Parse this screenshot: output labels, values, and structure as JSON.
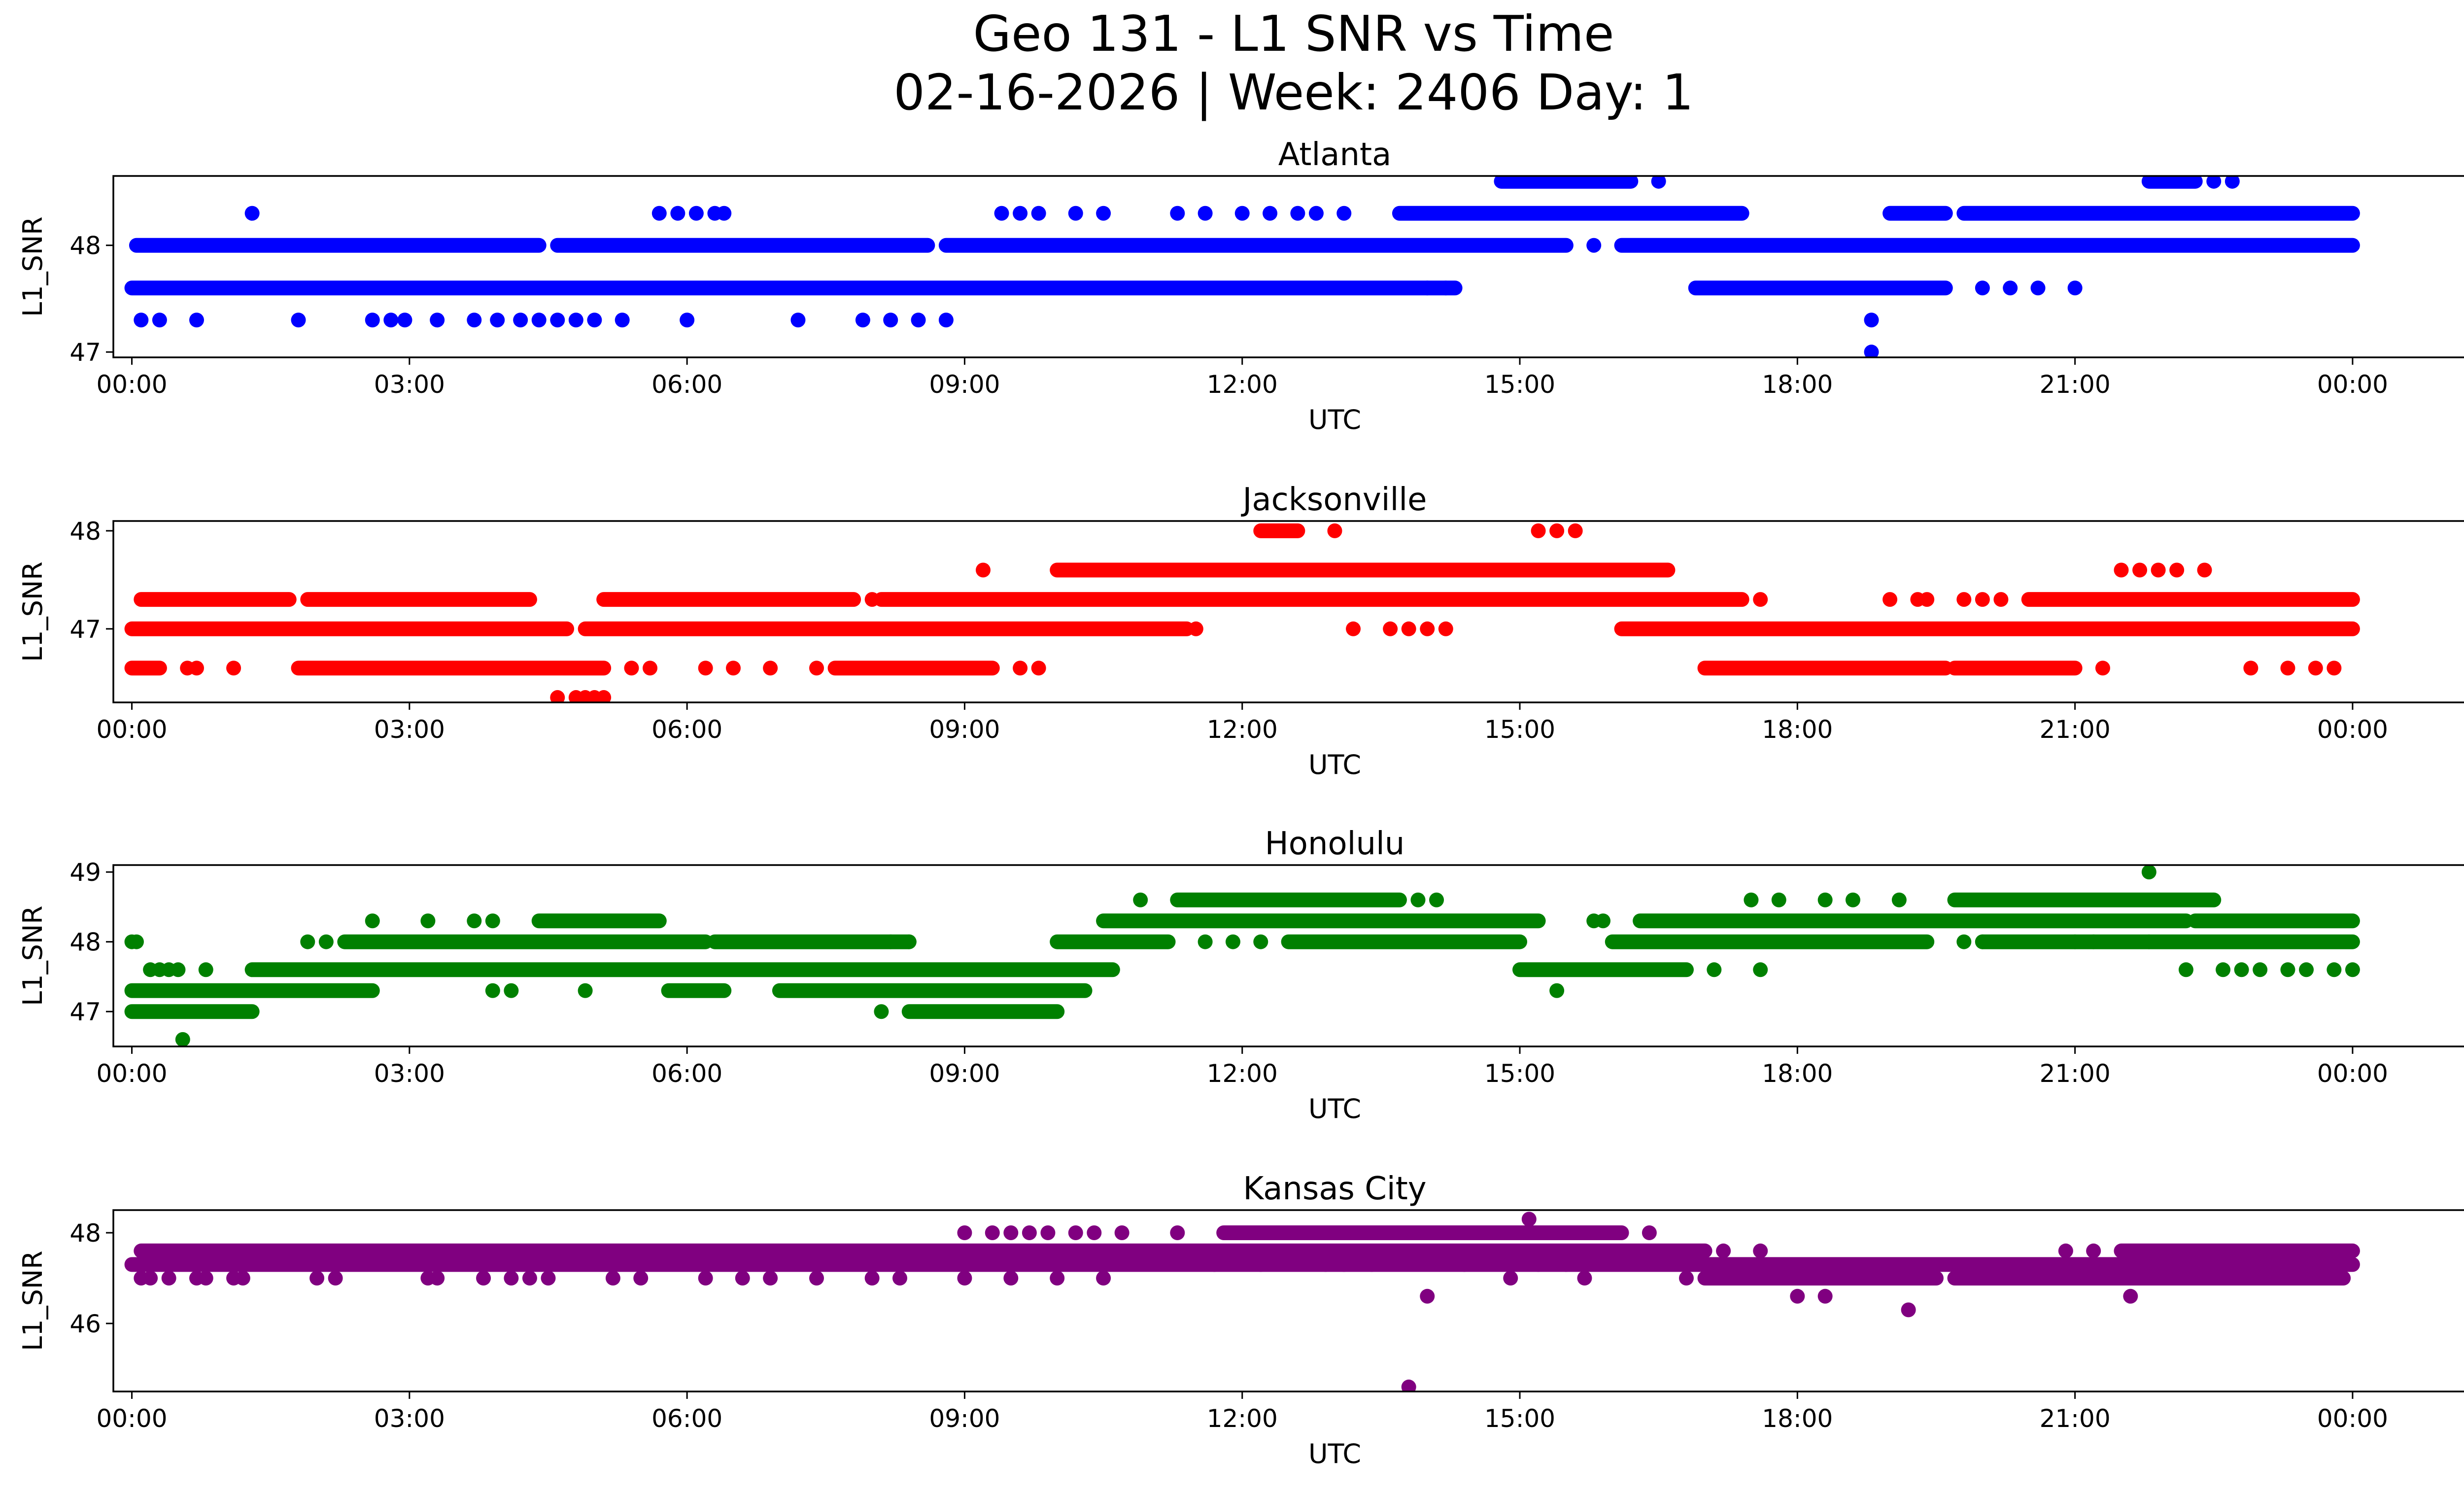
{
  "figure": {
    "title_line1": "Geo 131 - L1 SNR vs Time",
    "title_line2": "02-16-2026 | Week: 2406 Day: 1"
  },
  "chart_data": [
    {
      "type": "scatter",
      "title": "Atlanta",
      "color": "#0000ff",
      "xlabel": "UTC",
      "ylabel": "L1_SNR",
      "xlim": [
        -0.2,
        26.2
      ],
      "ylim": [
        46.95,
        48.65
      ],
      "x_ticks": [
        0,
        3,
        6,
        9,
        12,
        15,
        18,
        21,
        24
      ],
      "x_tick_labels": [
        "00:00",
        "03:00",
        "06:00",
        "09:00",
        "12:00",
        "15:00",
        "18:00",
        "21:00",
        "00:00"
      ],
      "y_ticks": [
        47,
        48
      ],
      "y_tick_labels": [
        "47",
        "48"
      ],
      "bands": [
        {
          "y": 47.6,
          "ranges": [
            [
              0.0,
              14.3
            ],
            [
              16.9,
              19.6
            ]
          ]
        },
        {
          "y": 48.0,
          "ranges": [
            [
              0.05,
              4.4
            ],
            [
              4.6,
              8.6
            ],
            [
              8.8,
              15.5
            ],
            [
              16.1,
              24.0
            ]
          ]
        },
        {
          "y": 48.3,
          "ranges": [
            [
              13.7,
              17.4
            ],
            [
              19.0,
              19.6
            ],
            [
              19.8,
              24.0
            ]
          ]
        },
        {
          "y": 48.6,
          "ranges": [
            [
              14.8,
              16.2
            ],
            [
              21.8,
              22.3
            ]
          ]
        }
      ],
      "points": [
        [
          0.1,
          47.3
        ],
        [
          0.3,
          47.3
        ],
        [
          0.7,
          47.3
        ],
        [
          1.8,
          47.3
        ],
        [
          2.6,
          47.3
        ],
        [
          2.8,
          47.3
        ],
        [
          2.95,
          47.3
        ],
        [
          3.3,
          47.3
        ],
        [
          3.7,
          47.3
        ],
        [
          3.95,
          47.3
        ],
        [
          4.2,
          47.3
        ],
        [
          4.4,
          47.3
        ],
        [
          4.6,
          47.3
        ],
        [
          4.8,
          47.3
        ],
        [
          5.0,
          47.3
        ],
        [
          5.3,
          47.3
        ],
        [
          6.0,
          47.3
        ],
        [
          7.2,
          47.3
        ],
        [
          7.9,
          47.3
        ],
        [
          8.2,
          47.3
        ],
        [
          8.5,
          47.3
        ],
        [
          8.8,
          47.3
        ],
        [
          18.8,
          47.3
        ],
        [
          18.8,
          47.0
        ],
        [
          14.0,
          47.6
        ],
        [
          14.2,
          47.6
        ],
        [
          20.0,
          47.6
        ],
        [
          20.3,
          47.6
        ],
        [
          20.6,
          47.6
        ],
        [
          21.0,
          47.6
        ],
        [
          15.8,
          48.0
        ],
        [
          1.3,
          48.3
        ],
        [
          5.7,
          48.3
        ],
        [
          5.9,
          48.3
        ],
        [
          6.1,
          48.3
        ],
        [
          6.3,
          48.3
        ],
        [
          6.4,
          48.3
        ],
        [
          9.4,
          48.3
        ],
        [
          9.6,
          48.3
        ],
        [
          9.8,
          48.3
        ],
        [
          10.2,
          48.3
        ],
        [
          10.5,
          48.3
        ],
        [
          11.3,
          48.3
        ],
        [
          11.6,
          48.3
        ],
        [
          12.0,
          48.3
        ],
        [
          12.3,
          48.3
        ],
        [
          12.6,
          48.3
        ],
        [
          12.8,
          48.3
        ],
        [
          13.1,
          48.3
        ],
        [
          16.5,
          48.6
        ],
        [
          22.5,
          48.6
        ],
        [
          22.7,
          48.6
        ]
      ]
    },
    {
      "type": "scatter",
      "title": "Jacksonville",
      "color": "#ff0000",
      "xlabel": "UTC",
      "ylabel": "L1_SNR",
      "xlim": [
        -0.2,
        26.2
      ],
      "ylim": [
        46.25,
        48.1
      ],
      "x_ticks": [
        0,
        3,
        6,
        9,
        12,
        15,
        18,
        21,
        24
      ],
      "x_tick_labels": [
        "00:00",
        "03:00",
        "06:00",
        "09:00",
        "12:00",
        "15:00",
        "18:00",
        "21:00",
        "00:00"
      ],
      "y_ticks": [
        47,
        48
      ],
      "y_tick_labels": [
        "47",
        "48"
      ],
      "bands": [
        {
          "y": 46.6,
          "ranges": [
            [
              0.0,
              0.3
            ],
            [
              1.8,
              5.1
            ],
            [
              7.6,
              9.3
            ],
            [
              17.0,
              19.6
            ],
            [
              19.7,
              21.0
            ]
          ]
        },
        {
          "y": 47.0,
          "ranges": [
            [
              0.0,
              4.7
            ],
            [
              4.9,
              11.4
            ],
            [
              16.1,
              24.0
            ]
          ]
        },
        {
          "y": 47.3,
          "ranges": [
            [
              0.1,
              1.7
            ],
            [
              1.9,
              4.3
            ],
            [
              5.1,
              7.8
            ],
            [
              8.1,
              17.4
            ],
            [
              20.5,
              24.0
            ]
          ]
        },
        {
          "y": 47.6,
          "ranges": [
            [
              10.0,
              16.6
            ]
          ]
        },
        {
          "y": 48.0,
          "ranges": [
            [
              12.2,
              12.6
            ]
          ]
        }
      ],
      "points": [
        [
          0.6,
          46.6
        ],
        [
          0.7,
          46.6
        ],
        [
          1.1,
          46.6
        ],
        [
          5.4,
          46.6
        ],
        [
          5.6,
          46.6
        ],
        [
          6.2,
          46.6
        ],
        [
          6.5,
          46.6
        ],
        [
          6.9,
          46.6
        ],
        [
          7.4,
          46.6
        ],
        [
          9.6,
          46.6
        ],
        [
          9.8,
          46.6
        ],
        [
          21.3,
          46.6
        ],
        [
          22.9,
          46.6
        ],
        [
          23.3,
          46.6
        ],
        [
          23.6,
          46.6
        ],
        [
          23.8,
          46.6
        ],
        [
          4.6,
          46.3
        ],
        [
          4.8,
          46.3
        ],
        [
          4.9,
          46.3
        ],
        [
          5.0,
          46.3
        ],
        [
          5.1,
          46.3
        ],
        [
          11.5,
          47.0
        ],
        [
          13.2,
          47.0
        ],
        [
          13.6,
          47.0
        ],
        [
          13.8,
          47.0
        ],
        [
          14.0,
          47.0
        ],
        [
          14.2,
          47.0
        ],
        [
          8.0,
          47.3
        ],
        [
          17.6,
          47.3
        ],
        [
          19.0,
          47.3
        ],
        [
          19.3,
          47.3
        ],
        [
          19.4,
          47.3
        ],
        [
          19.8,
          47.3
        ],
        [
          20.0,
          47.3
        ],
        [
          20.2,
          47.3
        ],
        [
          9.2,
          47.6
        ],
        [
          21.5,
          47.6
        ],
        [
          21.7,
          47.6
        ],
        [
          21.9,
          47.6
        ],
        [
          22.1,
          47.6
        ],
        [
          22.4,
          47.6
        ],
        [
          13.0,
          48.0
        ],
        [
          15.2,
          48.0
        ],
        [
          15.4,
          48.0
        ],
        [
          15.6,
          48.0
        ]
      ]
    },
    {
      "type": "scatter",
      "title": "Honolulu",
      "color": "#008000",
      "xlabel": "UTC",
      "ylabel": "L1_SNR",
      "xlim": [
        -0.2,
        26.2
      ],
      "ylim": [
        46.5,
        49.1
      ],
      "x_ticks": [
        0,
        3,
        6,
        9,
        12,
        15,
        18,
        21,
        24
      ],
      "x_tick_labels": [
        "00:00",
        "03:00",
        "06:00",
        "09:00",
        "12:00",
        "15:00",
        "18:00",
        "21:00",
        "00:00"
      ],
      "y_ticks": [
        47,
        48,
        49
      ],
      "y_tick_labels": [
        "47",
        "48",
        "49"
      ],
      "bands": [
        {
          "y": 47.0,
          "ranges": [
            [
              0.0,
              1.3
            ],
            [
              8.4,
              10.0
            ]
          ]
        },
        {
          "y": 47.3,
          "ranges": [
            [
              0.0,
              2.6
            ],
            [
              5.8,
              6.4
            ],
            [
              7.0,
              10.3
            ]
          ]
        },
        {
          "y": 47.6,
          "ranges": [
            [
              1.3,
              10.6
            ],
            [
              15.0,
              16.8
            ]
          ]
        },
        {
          "y": 48.0,
          "ranges": [
            [
              2.3,
              6.2
            ],
            [
              6.3,
              8.4
            ],
            [
              10.0,
              11.2
            ],
            [
              12.5,
              15.0
            ],
            [
              16.0,
              19.4
            ],
            [
              20.0,
              24.0
            ]
          ]
        },
        {
          "y": 48.3,
          "ranges": [
            [
              4.4,
              5.7
            ],
            [
              10.5,
              15.2
            ],
            [
              16.3,
              22.2
            ],
            [
              22.3,
              24.0
            ]
          ]
        },
        {
          "y": 48.6,
          "ranges": [
            [
              11.3,
              13.7
            ],
            [
              19.7,
              22.5
            ]
          ]
        }
      ],
      "points": [
        [
          0.0,
          48.0
        ],
        [
          0.05,
          48.0
        ],
        [
          0.2,
          47.6
        ],
        [
          0.3,
          47.6
        ],
        [
          0.4,
          47.6
        ],
        [
          0.5,
          47.6
        ],
        [
          0.55,
          46.6
        ],
        [
          0.8,
          47.6
        ],
        [
          1.9,
          48.0
        ],
        [
          2.1,
          48.0
        ],
        [
          2.6,
          48.3
        ],
        [
          3.2,
          48.3
        ],
        [
          3.7,
          48.3
        ],
        [
          3.9,
          48.3
        ],
        [
          3.9,
          47.3
        ],
        [
          4.1,
          47.3
        ],
        [
          4.9,
          47.3
        ],
        [
          8.1,
          47.0
        ],
        [
          8.2,
          48.0
        ],
        [
          8.4,
          48.0
        ],
        [
          10.9,
          48.6
        ],
        [
          13.9,
          48.6
        ],
        [
          14.1,
          48.6
        ],
        [
          11.6,
          48.0
        ],
        [
          11.9,
          48.0
        ],
        [
          12.2,
          48.0
        ],
        [
          15.4,
          47.3
        ],
        [
          17.1,
          47.6
        ],
        [
          17.6,
          47.6
        ],
        [
          15.8,
          48.3
        ],
        [
          15.9,
          48.3
        ],
        [
          17.5,
          48.6
        ],
        [
          17.8,
          48.6
        ],
        [
          18.3,
          48.6
        ],
        [
          18.6,
          48.6
        ],
        [
          19.1,
          48.6
        ],
        [
          19.8,
          48.0
        ],
        [
          20.0,
          48.0
        ],
        [
          21.0,
          48.0
        ],
        [
          21.2,
          48.0
        ],
        [
          21.8,
          48.0
        ],
        [
          21.8,
          49.0
        ],
        [
          22.2,
          47.6
        ],
        [
          22.6,
          47.6
        ],
        [
          22.8,
          47.6
        ],
        [
          23.0,
          47.6
        ],
        [
          23.3,
          47.6
        ],
        [
          23.5,
          47.6
        ],
        [
          23.8,
          47.6
        ],
        [
          24.0,
          47.6
        ]
      ]
    },
    {
      "type": "scatter",
      "title": "Kansas City",
      "color": "#800080",
      "xlabel": "UTC",
      "ylabel": "L1_SNR",
      "xlim": [
        -0.2,
        26.2
      ],
      "ylim": [
        44.5,
        48.5
      ],
      "x_ticks": [
        0,
        3,
        6,
        9,
        12,
        15,
        18,
        21,
        24
      ],
      "x_tick_labels": [
        "00:00",
        "03:00",
        "06:00",
        "09:00",
        "12:00",
        "15:00",
        "18:00",
        "21:00",
        "00:00"
      ],
      "y_ticks": [
        46,
        48
      ],
      "y_tick_labels": [
        "46",
        "48"
      ],
      "bands": [
        {
          "y": 47.0,
          "ranges": [
            [
              17.0,
              19.5
            ],
            [
              19.7,
              23.9
            ]
          ]
        },
        {
          "y": 47.3,
          "ranges": [
            [
              0.0,
              17.0
            ],
            [
              17.0,
              24.0
            ]
          ]
        },
        {
          "y": 47.6,
          "ranges": [
            [
              0.1,
              17.0
            ],
            [
              21.5,
              24.0
            ]
          ]
        },
        {
          "y": 48.0,
          "ranges": [
            [
              11.8,
              16.1
            ]
          ]
        }
      ],
      "points": [
        [
          0.1,
          47.0
        ],
        [
          0.2,
          47.0
        ],
        [
          0.4,
          47.0
        ],
        [
          0.7,
          47.0
        ],
        [
          0.8,
          47.0
        ],
        [
          1.1,
          47.0
        ],
        [
          1.2,
          47.0
        ],
        [
          2.0,
          47.0
        ],
        [
          2.2,
          47.0
        ],
        [
          3.2,
          47.0
        ],
        [
          3.3,
          47.0
        ],
        [
          3.8,
          47.0
        ],
        [
          4.1,
          47.0
        ],
        [
          4.3,
          47.0
        ],
        [
          4.5,
          47.0
        ],
        [
          5.2,
          47.0
        ],
        [
          5.5,
          47.0
        ],
        [
          6.2,
          47.0
        ],
        [
          6.6,
          47.0
        ],
        [
          6.9,
          47.0
        ],
        [
          7.4,
          47.0
        ],
        [
          8.0,
          47.0
        ],
        [
          8.3,
          47.0
        ],
        [
          9.0,
          47.0
        ],
        [
          9.5,
          47.0
        ],
        [
          10.0,
          47.0
        ],
        [
          10.5,
          47.0
        ],
        [
          9.0,
          48.0
        ],
        [
          9.3,
          48.0
        ],
        [
          9.5,
          48.0
        ],
        [
          9.7,
          48.0
        ],
        [
          9.9,
          48.0
        ],
        [
          10.2,
          48.0
        ],
        [
          10.4,
          48.0
        ],
        [
          10.7,
          48.0
        ],
        [
          11.3,
          48.0
        ],
        [
          16.4,
          48.0
        ],
        [
          15.1,
          48.3
        ],
        [
          11.7,
          47.3
        ],
        [
          12.2,
          47.3
        ],
        [
          12.9,
          47.3
        ],
        [
          13.1,
          47.3
        ],
        [
          13.4,
          47.3
        ],
        [
          14.4,
          47.3
        ],
        [
          15.2,
          47.3
        ],
        [
          15.5,
          47.3
        ],
        [
          14.9,
          47.0
        ],
        [
          15.7,
          47.0
        ],
        [
          16.8,
          47.0
        ],
        [
          17.2,
          47.6
        ],
        [
          17.6,
          47.6
        ],
        [
          14.0,
          46.6
        ],
        [
          18.0,
          46.6
        ],
        [
          18.3,
          46.6
        ],
        [
          21.6,
          46.6
        ],
        [
          13.8,
          44.6
        ],
        [
          19.2,
          46.3
        ],
        [
          20.9,
          47.6
        ],
        [
          21.2,
          47.6
        ]
      ]
    }
  ]
}
